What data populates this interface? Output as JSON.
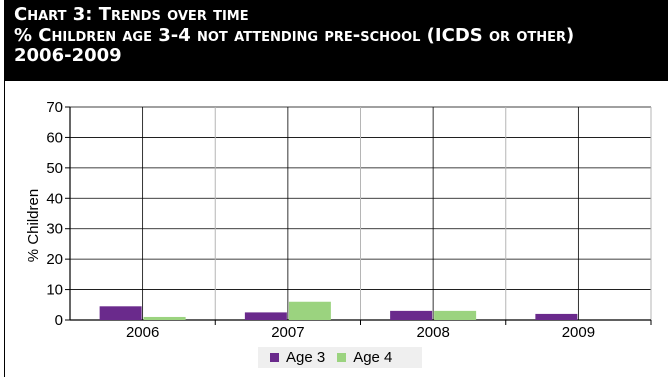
{
  "header": {
    "line1": "Chart 3: Trends over time",
    "line2": "% Children age 3-4 not attending pre-school (ICDS or other)",
    "line3": "2006-2009"
  },
  "colors": {
    "age3": "#6a2a8c",
    "age4": "#9bd37f",
    "header_bg": "#000000",
    "grid": "#000000",
    "legend_bg": "#efefef"
  },
  "chart_data": {
    "type": "bar",
    "title": "Chart 3: Trends over time % Children age 3-4 not attending pre-school (ICDS or other) 2006-2009",
    "xlabel": "",
    "ylabel": "% Children",
    "categories": [
      "2006",
      "2007",
      "2008",
      "2009"
    ],
    "series": [
      {
        "name": "Age 3",
        "values": [
          4.5,
          2.5,
          3.0,
          2.0
        ]
      },
      {
        "name": "Age 4",
        "values": [
          1.0,
          6.0,
          3.0,
          0
        ]
      }
    ],
    "ylim": [
      0,
      70
    ],
    "yticks": [
      0,
      10,
      20,
      30,
      40,
      50,
      60,
      70
    ],
    "grid": true,
    "legend": "bottom"
  }
}
